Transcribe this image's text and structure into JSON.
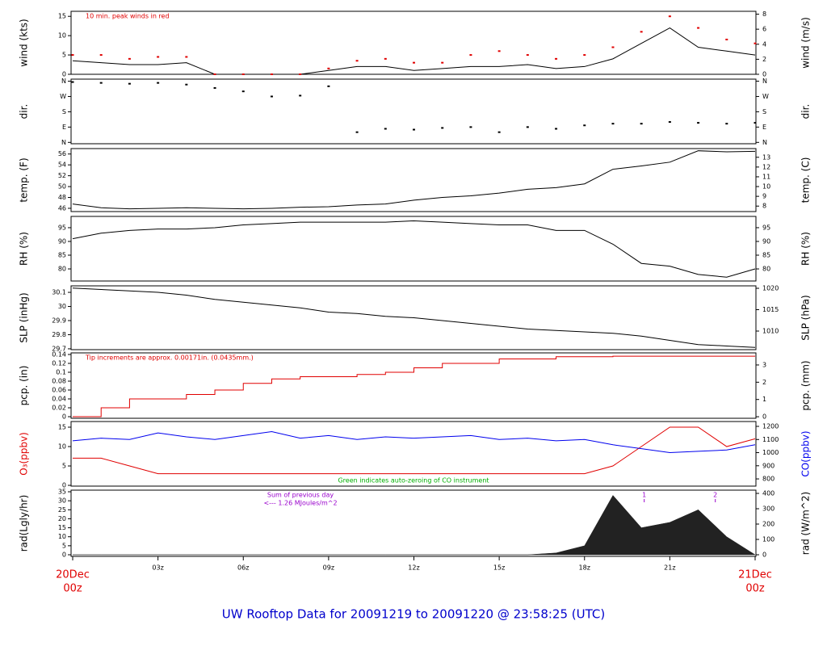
{
  "title": "UW Rooftop Data for 20091219  to  20091220 @ 23:58:25  (UTC)",
  "chart_data": [
    {
      "type": "line",
      "ylabel": "wind (kts)",
      "y2label": "wind (m/s)",
      "annotations": [
        "10 min. peak winds in red"
      ],
      "annotation_color": "#e00000",
      "xlim": [
        0,
        24
      ],
      "ylim": [
        0,
        16.3
      ],
      "yticks": [
        0,
        5,
        10,
        15
      ],
      "y2lim": [
        0,
        8.38
      ],
      "y2ticks": [
        0,
        2,
        4,
        6,
        8
      ],
      "x": [
        0,
        1,
        2,
        3,
        4,
        5,
        6,
        7,
        8,
        9,
        10,
        11,
        12,
        13,
        14,
        15,
        16,
        17,
        18,
        19,
        20,
        21,
        22,
        23,
        24
      ],
      "series": [
        {
          "color": "#000000",
          "values": [
            3.5,
            3,
            2.5,
            2.5,
            3,
            0,
            0,
            0,
            0,
            1,
            2,
            2,
            1,
            1.5,
            2,
            2,
            2.5,
            1.5,
            2,
            4,
            8,
            12,
            7,
            6,
            5
          ]
        },
        {
          "color": "#e00000",
          "mode": "markers",
          "values": [
            5,
            5,
            4,
            4.5,
            4.5,
            0,
            0,
            0,
            0,
            1.5,
            3.5,
            4,
            3,
            3,
            5,
            6,
            5,
            4,
            5,
            7,
            11,
            15,
            12,
            9,
            8
          ]
        }
      ]
    },
    {
      "type": "scatter",
      "ylabel": "dir.",
      "y2label": "dir.",
      "xlim": [
        0,
        24
      ],
      "ylim": [
        -8,
        372
      ],
      "yticks": [
        {
          "value": 0,
          "label": "N"
        },
        {
          "value": 90,
          "label": "E"
        },
        {
          "value": 180,
          "label": "S"
        },
        {
          "value": 270,
          "label": "W"
        },
        {
          "value": 360,
          "label": "N"
        }
      ],
      "y2lim": [
        -8,
        372
      ],
      "y2ticks": [
        {
          "value": 0,
          "label": "N"
        },
        {
          "value": 90,
          "label": "E"
        },
        {
          "value": 180,
          "label": "S"
        },
        {
          "value": 270,
          "label": "W"
        },
        {
          "value": 360,
          "label": "N"
        }
      ],
      "x": [
        0,
        1,
        2,
        3,
        4,
        5,
        6,
        7,
        8,
        9,
        10,
        11,
        12,
        13,
        14,
        15,
        16,
        17,
        18,
        19,
        20,
        21,
        22,
        23,
        24
      ],
      "series": [
        {
          "color": "#000000",
          "values": [
            355,
            350,
            345,
            350,
            340,
            320,
            300,
            270,
            275,
            330,
            60,
            80,
            75,
            85,
            90,
            60,
            90,
            80,
            100,
            110,
            110,
            120,
            115,
            110,
            115
          ]
        }
      ]
    },
    {
      "type": "line",
      "ylabel": "temp. (F)",
      "y2label": "temp. (C)",
      "xlim": [
        0,
        24
      ],
      "ylim": [
        45.4,
        57.0
      ],
      "yticks": [
        46,
        48,
        50,
        52,
        54,
        56
      ],
      "y2lim": [
        7.44,
        13.89
      ],
      "y2ticks": [
        8,
        9,
        10,
        11,
        12,
        13
      ],
      "x": [
        0,
        1,
        2,
        3,
        4,
        5,
        6,
        7,
        8,
        9,
        10,
        11,
        12,
        13,
        14,
        15,
        16,
        17,
        18,
        19,
        20,
        21,
        22,
        23,
        24
      ],
      "series": [
        {
          "color": "#000000",
          "values": [
            46.8,
            46.1,
            45.9,
            46.0,
            46.1,
            46.0,
            45.9,
            46.0,
            46.2,
            46.3,
            46.6,
            46.8,
            47.5,
            48.0,
            48.3,
            48.8,
            49.5,
            49.8,
            50.5,
            53.2,
            53.8,
            54.5,
            56.6,
            56.4,
            56.5
          ]
        }
      ]
    },
    {
      "type": "line",
      "ylabel": "RH (%)",
      "y2label": "RH (%)",
      "xlim": [
        0,
        24
      ],
      "ylim": [
        75.6,
        99.1
      ],
      "yticks": [
        80,
        85,
        90,
        95
      ],
      "y2lim": [
        75.6,
        99.1
      ],
      "y2ticks": [
        80,
        85,
        90,
        95
      ],
      "x": [
        0,
        1,
        2,
        3,
        4,
        5,
        6,
        7,
        8,
        9,
        10,
        11,
        12,
        13,
        14,
        15,
        16,
        17,
        18,
        19,
        20,
        21,
        22,
        23,
        24
      ],
      "series": [
        {
          "color": "#000000",
          "values": [
            91,
            93,
            94,
            94.5,
            94.5,
            95,
            96,
            96.5,
            97,
            97,
            97,
            97,
            97.5,
            97,
            96.5,
            96,
            96,
            94,
            94,
            89,
            82,
            81,
            78,
            77,
            80
          ]
        }
      ]
    },
    {
      "type": "line",
      "ylabel": "SLP (inHg)",
      "y2label": "SLP (hPa)",
      "xlim": [
        0,
        24
      ],
      "ylim": [
        29.694,
        30.146
      ],
      "yticks": [
        29.7,
        29.8,
        29.9,
        30.0,
        30.1
      ],
      "y2lim": [
        1005.66,
        1020.57
      ],
      "y2ticks": [
        1010,
        1015,
        1020
      ],
      "x": [
        0,
        1,
        2,
        3,
        4,
        5,
        6,
        7,
        8,
        9,
        10,
        11,
        12,
        13,
        14,
        15,
        16,
        17,
        18,
        19,
        20,
        21,
        22,
        23,
        24
      ],
      "series": [
        {
          "color": "#000000",
          "values": [
            30.13,
            30.12,
            30.11,
            30.1,
            30.08,
            30.05,
            30.03,
            30.01,
            29.99,
            29.96,
            29.95,
            29.93,
            29.92,
            29.9,
            29.88,
            29.86,
            29.84,
            29.83,
            29.82,
            29.81,
            29.79,
            29.76,
            29.73,
            29.72,
            29.71
          ]
        }
      ]
    },
    {
      "type": "line",
      "step": true,
      "ylabel": "pcp. (in)",
      "y2label": "pcp. (mm)",
      "annotations": [
        "Tip increments are approx. 0.00171in. (0.0435mm.)"
      ],
      "annotation_color": "#e00000",
      "xlim": [
        0,
        24
      ],
      "ylim": [
        -0.0036,
        0.1436
      ],
      "yticks": [
        0,
        0.02,
        0.04,
        0.06,
        0.08,
        0.1,
        0.12,
        0.14
      ],
      "y2lim": [
        -0.09,
        3.7
      ],
      "y2ticks": [
        0,
        1,
        2,
        3
      ],
      "x": [
        0,
        1,
        2,
        3,
        4,
        5,
        6,
        7,
        8,
        9,
        10,
        11,
        12,
        13,
        14,
        15,
        16,
        17,
        18,
        19,
        20,
        21,
        22,
        23,
        24
      ],
      "series": [
        {
          "color": "#e00000",
          "values": [
            0,
            0.02,
            0.04,
            0.04,
            0.05,
            0.06,
            0.075,
            0.085,
            0.09,
            0.09,
            0.095,
            0.1,
            0.11,
            0.12,
            0.12,
            0.13,
            0.13,
            0.135,
            0.135,
            0.136,
            0.136,
            0.136,
            0.136,
            0.136,
            0.136
          ]
        }
      ]
    },
    {
      "type": "line",
      "ylabel": "O₃(ppbv)",
      "y2label": "CO(ppbv)",
      "label_colors": true,
      "annotations": [
        "Green indicates auto-zeroing of CO instrument"
      ],
      "annotation_color": "#00b000",
      "xlim": [
        0,
        24
      ],
      "ylim": [
        -0.2,
        16.46
      ],
      "yticks": [
        0,
        5,
        10,
        15
      ],
      "y2lim": [
        745,
        1237
      ],
      "y2ticks": [
        800,
        900,
        1000,
        1100,
        1200
      ],
      "x": [
        0,
        1,
        2,
        3,
        4,
        5,
        6,
        7,
        8,
        9,
        10,
        11,
        12,
        13,
        14,
        15,
        16,
        17,
        18,
        19,
        20,
        21,
        22,
        23,
        24
      ],
      "series": [
        {
          "color": "#e00000",
          "values": [
            7,
            7,
            5,
            3,
            3,
            3,
            3,
            3,
            3,
            3,
            3,
            3,
            3,
            3,
            3,
            3,
            3,
            3,
            3,
            5,
            10,
            15,
            15,
            10,
            12
          ]
        },
        {
          "color": "#0000ee",
          "axis": "y2",
          "values": [
            1090,
            1110,
            1100,
            1150,
            1120,
            1100,
            1130,
            1160,
            1110,
            1130,
            1100,
            1120,
            1110,
            1120,
            1130,
            1100,
            1110,
            1090,
            1100,
            1060,
            1030,
            1000,
            1010,
            1020,
            1060
          ]
        }
      ]
    },
    {
      "type": "area",
      "ylabel": "rad(Lgly/hr)",
      "y2label": "rad (W/m^2)",
      "annotations": [
        "Sum of previous day",
        "<--- 1.26 MJoules/m^2"
      ],
      "annotation_color": "#9900cc",
      "markers": [
        {
          "x": 20.1,
          "label": "1"
        },
        {
          "x": 22.6,
          "label": "2"
        }
      ],
      "xlim": [
        0,
        24
      ],
      "ylim": [
        -0.9,
        35.9
      ],
      "yticks": [
        0,
        5,
        10,
        15,
        20,
        25,
        30,
        35
      ],
      "y2lim": [
        -10.5,
        421
      ],
      "y2ticks": [
        0,
        100,
        200,
        300,
        400
      ],
      "xticks": [
        {
          "value": 0,
          "label": "20Dec",
          "label2": "00z"
        },
        {
          "value": 3,
          "label": "03z"
        },
        {
          "value": 6,
          "label": "06z"
        },
        {
          "value": 9,
          "label": "09z"
        },
        {
          "value": 12,
          "label": "12z"
        },
        {
          "value": 15,
          "label": "15z"
        },
        {
          "value": 18,
          "label": "18z"
        },
        {
          "value": 21,
          "label": "21z"
        },
        {
          "value": 24,
          "label": "21Dec",
          "label2": "00z"
        }
      ],
      "x": [
        0,
        1,
        2,
        3,
        4,
        5,
        6,
        7,
        8,
        9,
        10,
        11,
        12,
        13,
        14,
        15,
        16,
        17,
        18,
        19,
        20,
        21,
        22,
        23,
        24
      ],
      "series": [
        {
          "color": "#222222",
          "values": [
            0,
            0,
            0,
            0,
            0,
            0,
            0,
            0,
            0,
            0,
            0,
            0,
            0,
            0,
            0,
            0,
            0,
            1,
            5,
            33,
            15,
            18,
            25,
            10,
            0
          ]
        }
      ]
    }
  ]
}
